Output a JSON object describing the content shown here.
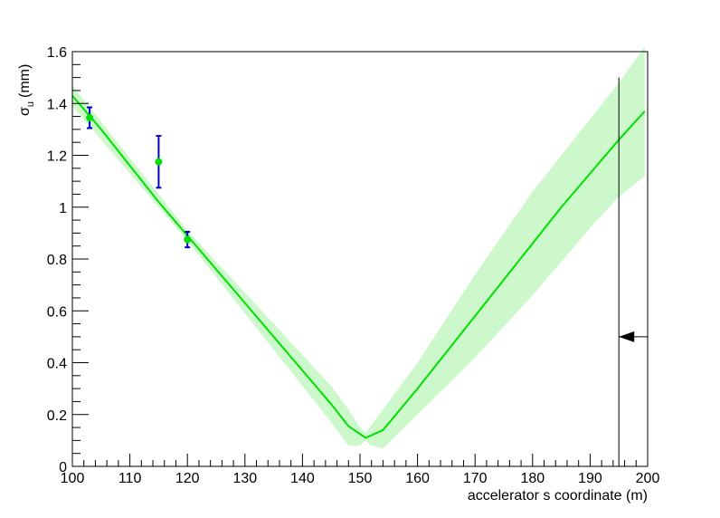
{
  "chart_data": {
    "type": "line",
    "xlabel": "accelerator s coordinate (m)",
    "ylabel": {
      "symbol": "σ",
      "subscript": "u",
      "unit": "(mm)"
    },
    "xlim": [
      100,
      200
    ],
    "ylim": [
      0,
      1.6
    ],
    "x_ticks": [
      100,
      110,
      120,
      130,
      140,
      150,
      160,
      170,
      180,
      190,
      200
    ],
    "y_ticks": [
      0,
      0.2,
      0.4,
      0.6,
      0.8,
      1,
      1.2,
      1.4,
      1.6
    ],
    "grid": false,
    "colors": {
      "fit_line": "#00e000",
      "band": "#ccf8cc",
      "points": "#00e000",
      "error_bars": "#0000cc",
      "marker": "#000000"
    },
    "fit_curve": {
      "x": [
        100,
        105,
        110,
        115,
        120,
        125,
        130,
        135,
        140,
        145,
        148,
        151,
        154,
        157,
        160,
        165,
        170,
        175,
        180,
        185,
        190,
        195,
        199.5
      ],
      "y": [
        1.43,
        1.3,
        1.16,
        1.02,
        0.89,
        0.76,
        0.63,
        0.5,
        0.37,
        0.24,
        0.155,
        0.11,
        0.14,
        0.22,
        0.3,
        0.44,
        0.58,
        0.72,
        0.86,
        1.0,
        1.13,
        1.26,
        1.37
      ]
    },
    "uncertainty_band": {
      "x": [
        100,
        110,
        120,
        130,
        140,
        145,
        148,
        150,
        151,
        152,
        154,
        160,
        170,
        180,
        190,
        195,
        199.5
      ],
      "upper": [
        1.47,
        1.19,
        0.91,
        0.67,
        0.43,
        0.31,
        0.22,
        0.15,
        0.13,
        0.16,
        0.22,
        0.4,
        0.74,
        1.06,
        1.34,
        1.48,
        1.62
      ],
      "lower": [
        1.39,
        1.13,
        0.87,
        0.59,
        0.31,
        0.17,
        0.08,
        0.08,
        0.1,
        0.08,
        0.07,
        0.2,
        0.42,
        0.66,
        0.92,
        1.04,
        1.12
      ]
    },
    "data_points": [
      {
        "x": 103,
        "y": 1.345,
        "err": 0.04
      },
      {
        "x": 115,
        "y": 1.175,
        "err": 0.1
      },
      {
        "x": 120,
        "y": 0.875,
        "err": 0.03
      }
    ],
    "marker": {
      "x": 195,
      "y_top": 1.5,
      "arrow_y": 0.5
    }
  }
}
